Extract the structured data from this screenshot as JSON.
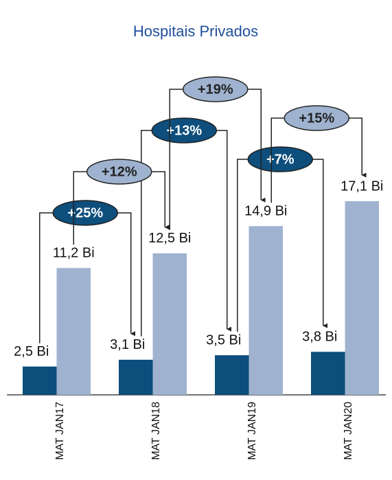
{
  "chart_data": {
    "type": "bar",
    "title": "Hospitais Privados",
    "categories": [
      "MAT JAN17",
      "MAT JAN18",
      "MAT JAN19",
      "MAT JAN20"
    ],
    "series": [
      {
        "color": "#0d4e7c",
        "values": [
          2.5,
          3.1,
          3.5,
          3.8
        ],
        "value_labels": [
          "2,5 Bi",
          "3,1 Bi",
          "3,5 Bi",
          "3,8 Bi"
        ],
        "growth": [
          "+25%",
          "+13%",
          "+7%"
        ]
      },
      {
        "color": "#9fb3d0",
        "values": [
          11.2,
          12.5,
          14.9,
          17.1
        ],
        "value_labels": [
          "11,2 Bi",
          "12,5 Bi",
          "14,9 Bi",
          "17,1 Bi"
        ],
        "growth": [
          "+12%",
          "+19%",
          "+15%"
        ]
      }
    ]
  }
}
